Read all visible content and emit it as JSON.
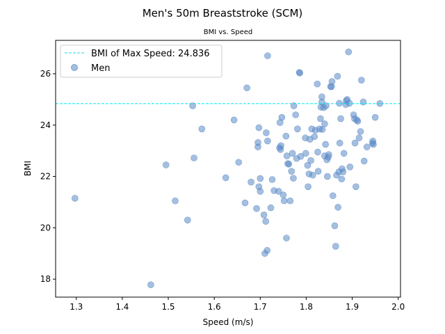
{
  "chart_data": {
    "type": "scatter",
    "title": "Men's 50m Breaststroke (SCM)",
    "subtitle": "BMI vs. Speed",
    "xlabel": "Speed (m/s)",
    "ylabel": "BMI",
    "xlim": [
      1.255,
      2.005
    ],
    "ylim": [
      17.3,
      27.3
    ],
    "xticks": [
      1.3,
      1.4,
      1.5,
      1.6,
      1.7,
      1.8,
      1.9,
      2.0
    ],
    "xtick_labels": [
      "1.3",
      "1.4",
      "1.5",
      "1.6",
      "1.7",
      "1.8",
      "1.9",
      "2.0"
    ],
    "yticks": [
      18,
      20,
      22,
      24,
      26
    ],
    "ytick_labels": [
      "18",
      "20",
      "22",
      "24",
      "26"
    ],
    "grid": false,
    "legend_position": "top-left",
    "reference_line": {
      "label": "BMI of Max Speed: 24.836",
      "y": 24.836,
      "color": "#00e5ee",
      "style": "dashed"
    },
    "series": [
      {
        "name": "Men",
        "color": "#5b8ac6",
        "points": [
          [
            1.297,
            21.15
          ],
          [
            1.462,
            17.78
          ],
          [
            1.495,
            22.45
          ],
          [
            1.515,
            21.05
          ],
          [
            1.542,
            20.3
          ],
          [
            1.553,
            24.75
          ],
          [
            1.556,
            22.72
          ],
          [
            1.573,
            23.85
          ],
          [
            1.625,
            21.95
          ],
          [
            1.643,
            24.2
          ],
          [
            1.653,
            22.55
          ],
          [
            1.667,
            20.97
          ],
          [
            1.671,
            25.45
          ],
          [
            1.68,
            21.78
          ],
          [
            1.692,
            20.75
          ],
          [
            1.695,
            23.15
          ],
          [
            1.695,
            23.32
          ],
          [
            1.697,
            21.6
          ],
          [
            1.697,
            23.9
          ],
          [
            1.7,
            21.92
          ],
          [
            1.7,
            21.42
          ],
          [
            1.708,
            20.5
          ],
          [
            1.71,
            19.0
          ],
          [
            1.712,
            20.25
          ],
          [
            1.713,
            23.7
          ],
          [
            1.715,
            19.12
          ],
          [
            1.716,
            26.7
          ],
          [
            1.716,
            23.38
          ],
          [
            1.723,
            20.78
          ],
          [
            1.726,
            21.88
          ],
          [
            1.73,
            21.45
          ],
          [
            1.74,
            21.42
          ],
          [
            1.742,
            23.12
          ],
          [
            1.743,
            24.1
          ],
          [
            1.744,
            23.05
          ],
          [
            1.745,
            23.2
          ],
          [
            1.747,
            24.3
          ],
          [
            1.75,
            21.28
          ],
          [
            1.752,
            21.05
          ],
          [
            1.756,
            23.57
          ],
          [
            1.757,
            19.6
          ],
          [
            1.758,
            22.8
          ],
          [
            1.76,
            22.5
          ],
          [
            1.762,
            22.48
          ],
          [
            1.765,
            21.05
          ],
          [
            1.768,
            22.2
          ],
          [
            1.77,
            22.9
          ],
          [
            1.772,
            21.93
          ],
          [
            1.773,
            24.75
          ],
          [
            1.777,
            24.4
          ],
          [
            1.779,
            22.7
          ],
          [
            1.781,
            23.85
          ],
          [
            1.785,
            26.05
          ],
          [
            1.786,
            26.03
          ],
          [
            1.788,
            22.78
          ],
          [
            1.798,
            23.5
          ],
          [
            1.799,
            22.9
          ],
          [
            1.803,
            22.43
          ],
          [
            1.804,
            21.6
          ],
          [
            1.806,
            22.1
          ],
          [
            1.808,
            23.45
          ],
          [
            1.81,
            22.62
          ],
          [
            1.812,
            23.85
          ],
          [
            1.814,
            22.05
          ],
          [
            1.818,
            23.55
          ],
          [
            1.82,
            23.8
          ],
          [
            1.824,
            25.6
          ],
          [
            1.825,
            22.95
          ],
          [
            1.826,
            22.2
          ],
          [
            1.829,
            23.85
          ],
          [
            1.831,
            24.25
          ],
          [
            1.832,
            24.7
          ],
          [
            1.834,
            25.1
          ],
          [
            1.834,
            24.9
          ],
          [
            1.835,
            23.83
          ],
          [
            1.838,
            24.68
          ],
          [
            1.84,
            22.8
          ],
          [
            1.84,
            24.05
          ],
          [
            1.842,
            23.25
          ],
          [
            1.843,
            24.75
          ],
          [
            1.845,
            22.65
          ],
          [
            1.846,
            22.0
          ],
          [
            1.848,
            22.75
          ],
          [
            1.849,
            22.85
          ],
          [
            1.853,
            25.5
          ],
          [
            1.855,
            25.5
          ],
          [
            1.856,
            25.7
          ],
          [
            1.858,
            21.25
          ],
          [
            1.862,
            20.08
          ],
          [
            1.864,
            19.28
          ],
          [
            1.866,
            22.05
          ],
          [
            1.868,
            25.9
          ],
          [
            1.869,
            20.8
          ],
          [
            1.871,
            22.18
          ],
          [
            1.872,
            24.85
          ],
          [
            1.873,
            23.3
          ],
          [
            1.875,
            24.25
          ],
          [
            1.877,
            21.9
          ],
          [
            1.878,
            22.3
          ],
          [
            1.88,
            22.18
          ],
          [
            1.882,
            22.9
          ],
          [
            1.886,
            24.8
          ],
          [
            1.887,
            24.95
          ],
          [
            1.889,
            25.0
          ],
          [
            1.892,
            26.85
          ],
          [
            1.894,
            24.85
          ],
          [
            1.895,
            22.37
          ],
          [
            1.903,
            24.4
          ],
          [
            1.905,
            24.25
          ],
          [
            1.906,
            23.3
          ],
          [
            1.908,
            21.6
          ],
          [
            1.91,
            24.2
          ],
          [
            1.912,
            24.15
          ],
          [
            1.915,
            23.5
          ],
          [
            1.918,
            23.75
          ],
          [
            1.92,
            25.75
          ],
          [
            1.924,
            24.9
          ],
          [
            1.926,
            22.6
          ],
          [
            1.932,
            23.15
          ],
          [
            1.944,
            23.3
          ],
          [
            1.945,
            23.38
          ],
          [
            1.946,
            23.25
          ],
          [
            1.95,
            24.3
          ],
          [
            1.96,
            24.84
          ]
        ]
      }
    ]
  }
}
